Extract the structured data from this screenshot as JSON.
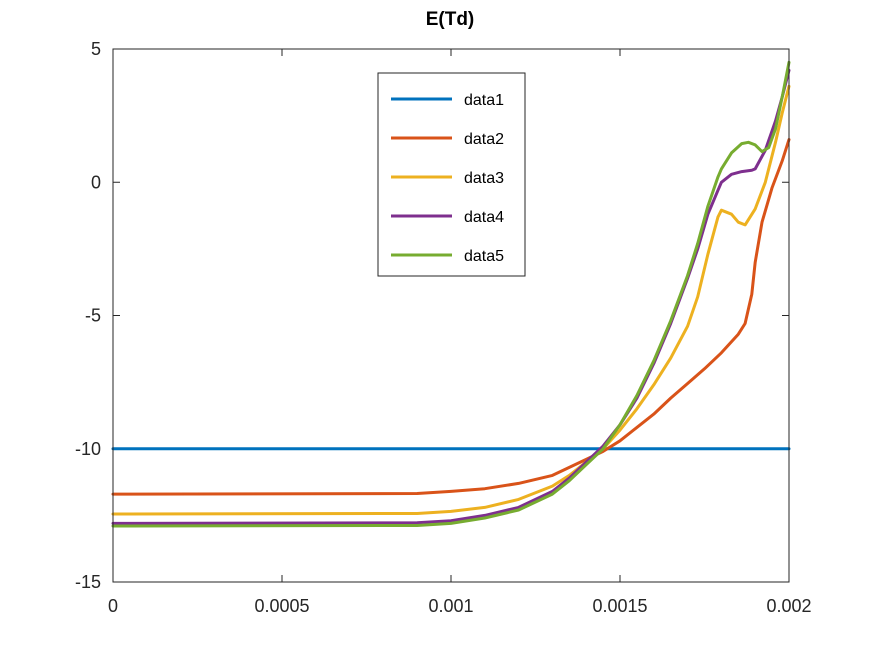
{
  "chart_data": {
    "type": "line",
    "title": "E(Td)",
    "xlabel": "",
    "ylabel": "",
    "xlim": [
      0,
      0.002
    ],
    "ylim": [
      -15,
      5
    ],
    "x_ticks": [
      0,
      0.0005,
      0.001,
      0.0015,
      0.002
    ],
    "x_tick_labels": [
      "0",
      "0.0005",
      "0.001",
      "0.0015",
      "0.002"
    ],
    "y_ticks": [
      -15,
      -10,
      -5,
      0,
      5
    ],
    "y_tick_labels": [
      "-15",
      "-10",
      "-5",
      "0",
      "5"
    ],
    "grid": false,
    "legend_position": "top-center",
    "series": [
      {
        "name": "data1",
        "color": "#0072BD",
        "points": [
          [
            0,
            -10
          ],
          [
            0.002,
            -10
          ]
        ]
      },
      {
        "name": "data2",
        "color": "#D95319",
        "points": [
          [
            0,
            -11.7
          ],
          [
            0.0009,
            -11.68
          ],
          [
            0.001,
            -11.6
          ],
          [
            0.0011,
            -11.5
          ],
          [
            0.0012,
            -11.3
          ],
          [
            0.0013,
            -11.0
          ],
          [
            0.00135,
            -10.7
          ],
          [
            0.0014,
            -10.4
          ],
          [
            0.00145,
            -10.1
          ],
          [
            0.0015,
            -9.7
          ],
          [
            0.00155,
            -9.2
          ],
          [
            0.0016,
            -8.7
          ],
          [
            0.00165,
            -8.1
          ],
          [
            0.0017,
            -7.55
          ],
          [
            0.00175,
            -7.0
          ],
          [
            0.0018,
            -6.4
          ],
          [
            0.00185,
            -5.7
          ],
          [
            0.00187,
            -5.3
          ],
          [
            0.00189,
            -4.2
          ],
          [
            0.0019,
            -3.0
          ],
          [
            0.00192,
            -1.5
          ],
          [
            0.00195,
            -0.2
          ],
          [
            0.00198,
            0.8
          ],
          [
            0.002,
            1.6
          ]
        ]
      },
      {
        "name": "data3",
        "color": "#EDB120",
        "points": [
          [
            0,
            -12.45
          ],
          [
            0.0009,
            -12.43
          ],
          [
            0.001,
            -12.35
          ],
          [
            0.0011,
            -12.2
          ],
          [
            0.0012,
            -11.9
          ],
          [
            0.0013,
            -11.4
          ],
          [
            0.00135,
            -11.0
          ],
          [
            0.0014,
            -10.5
          ],
          [
            0.00145,
            -10.0
          ],
          [
            0.0015,
            -9.3
          ],
          [
            0.00155,
            -8.5
          ],
          [
            0.0016,
            -7.6
          ],
          [
            0.00165,
            -6.6
          ],
          [
            0.0017,
            -5.4
          ],
          [
            0.00173,
            -4.3
          ],
          [
            0.00176,
            -2.7
          ],
          [
            0.00179,
            -1.3
          ],
          [
            0.0018,
            -1.05
          ],
          [
            0.00183,
            -1.2
          ],
          [
            0.00185,
            -1.5
          ],
          [
            0.00187,
            -1.6
          ],
          [
            0.0019,
            -1.0
          ],
          [
            0.00193,
            0.0
          ],
          [
            0.00196,
            1.5
          ],
          [
            0.00198,
            2.6
          ],
          [
            0.002,
            3.6
          ]
        ]
      },
      {
        "name": "data4",
        "color": "#7E2F8E",
        "points": [
          [
            0,
            -12.8
          ],
          [
            0.0009,
            -12.78
          ],
          [
            0.001,
            -12.7
          ],
          [
            0.0011,
            -12.5
          ],
          [
            0.0012,
            -12.2
          ],
          [
            0.0013,
            -11.6
          ],
          [
            0.00135,
            -11.1
          ],
          [
            0.0014,
            -10.5
          ],
          [
            0.00145,
            -9.9
          ],
          [
            0.0015,
            -9.1
          ],
          [
            0.00155,
            -8.1
          ],
          [
            0.0016,
            -6.8
          ],
          [
            0.00165,
            -5.3
          ],
          [
            0.0017,
            -3.6
          ],
          [
            0.00173,
            -2.5
          ],
          [
            0.00176,
            -1.2
          ],
          [
            0.00179,
            -0.3
          ],
          [
            0.0018,
            0.0
          ],
          [
            0.00183,
            0.3
          ],
          [
            0.00186,
            0.4
          ],
          [
            0.00189,
            0.45
          ],
          [
            0.0019,
            0.5
          ],
          [
            0.00193,
            1.2
          ],
          [
            0.00196,
            2.3
          ],
          [
            0.00198,
            3.2
          ],
          [
            0.002,
            4.2
          ]
        ]
      },
      {
        "name": "data5",
        "color": "#77AC30",
        "points": [
          [
            0,
            -12.9
          ],
          [
            0.0009,
            -12.88
          ],
          [
            0.001,
            -12.8
          ],
          [
            0.0011,
            -12.6
          ],
          [
            0.0012,
            -12.3
          ],
          [
            0.0013,
            -11.7
          ],
          [
            0.00135,
            -11.2
          ],
          [
            0.0014,
            -10.6
          ],
          [
            0.00145,
            -10.0
          ],
          [
            0.0015,
            -9.1
          ],
          [
            0.00155,
            -8.0
          ],
          [
            0.0016,
            -6.7
          ],
          [
            0.00165,
            -5.2
          ],
          [
            0.0017,
            -3.5
          ],
          [
            0.00173,
            -2.3
          ],
          [
            0.00176,
            -0.9
          ],
          [
            0.00179,
            0.2
          ],
          [
            0.0018,
            0.5
          ],
          [
            0.00183,
            1.1
          ],
          [
            0.00186,
            1.45
          ],
          [
            0.00188,
            1.5
          ],
          [
            0.0019,
            1.4
          ],
          [
            0.00192,
            1.15
          ],
          [
            0.00194,
            1.3
          ],
          [
            0.00196,
            2.0
          ],
          [
            0.00198,
            3.2
          ],
          [
            0.002,
            4.5
          ]
        ]
      }
    ]
  }
}
